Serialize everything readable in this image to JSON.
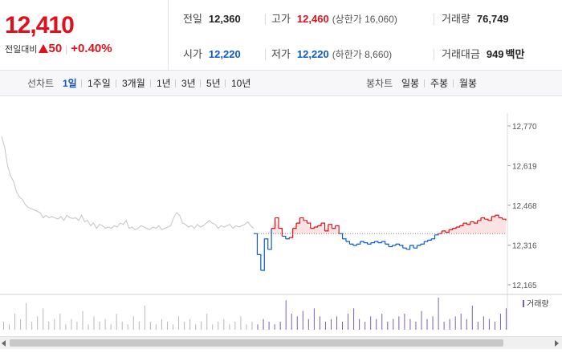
{
  "price": {
    "current": "12,410",
    "change_label": "전일대비",
    "change_amount": "50",
    "change_percent": "+0.40%"
  },
  "stats": {
    "prev_close": {
      "label": "전일",
      "value": "12,360"
    },
    "high": {
      "label": "고가",
      "value": "12,460",
      "sub": "(상한가 16,060)"
    },
    "volume": {
      "label": "거래량",
      "value": "76,749"
    },
    "open": {
      "label": "시가",
      "value": "12,220"
    },
    "low": {
      "label": "저가",
      "value": "12,220",
      "sub": "(하한가 8,660)"
    },
    "trade_value": {
      "label": "거래대금",
      "value": "949",
      "unit": "백만"
    }
  },
  "line_chart_tabs": {
    "label": "선차트",
    "items": [
      "1일",
      "1주일",
      "3개월",
      "1년",
      "3년",
      "5년",
      "10년"
    ],
    "active": "1일"
  },
  "candle_chart_tabs": {
    "label": "봉차트",
    "items": [
      "일봉",
      "주봉",
      "월봉"
    ]
  },
  "colors": {
    "up": "#e0111c",
    "down": "#0a5bd0",
    "prev_day": "#c4c4c4",
    "volume": "#7a5fb0"
  },
  "chart_data": {
    "type": "line",
    "y_ticks": [
      "12,770",
      "12,619",
      "12,468",
      "12,316",
      "12,165"
    ],
    "ylim": [
      12165,
      12770
    ],
    "baseline": 12360,
    "volume_legend": "거래량",
    "grid": false,
    "prev_day_series": [
      12730,
      12690,
      12620,
      12580,
      12560,
      12520,
      12500,
      12490,
      12470,
      12460,
      12455,
      12450,
      12445,
      12440,
      12420,
      12430,
      12420,
      12425,
      12420,
      12415,
      12425,
      12410,
      12430,
      12420,
      12418,
      12420,
      12410,
      12430,
      12405,
      12410,
      12390,
      12400,
      12380,
      12395,
      12390,
      12380,
      12385,
      12380,
      12390,
      12385,
      12400,
      12395,
      12410,
      12380,
      12385,
      12375,
      12380,
      12390,
      12385,
      12380,
      12375,
      12385,
      12380,
      12390,
      12375,
      12380,
      12385,
      12390,
      12420,
      12440,
      12430,
      12400,
      12395,
      12385,
      12390,
      12380,
      12395,
      12385,
      12390,
      12400,
      12410,
      12400,
      12395,
      12380,
      12390,
      12385,
      12390,
      12395,
      12380,
      12390,
      12385,
      12390,
      12395,
      12405,
      12390,
      12380
    ],
    "today_series": [
      12360,
      12280,
      12220,
      12340,
      12300,
      12380,
      12420,
      12380,
      12350,
      12340,
      12345,
      12380,
      12400,
      12420,
      12410,
      12400,
      12380,
      12385,
      12390,
      12400,
      12370,
      12395,
      12380,
      12390,
      12360,
      12340,
      12330,
      12320,
      12315,
      12320,
      12330,
      12325,
      12320,
      12325,
      12330,
      12325,
      12330,
      12320,
      12310,
      12315,
      12320,
      12315,
      12305,
      12300,
      12315,
      12305,
      12315,
      12320,
      12330,
      12335,
      12340,
      12355,
      12360,
      12370,
      12365,
      12375,
      12380,
      12385,
      12390,
      12400,
      12395,
      12405,
      12400,
      12410,
      12420,
      12415,
      12410,
      12425,
      12430,
      12420,
      12415,
      12410
    ],
    "volume_values": [
      3,
      2,
      6,
      4,
      10,
      3,
      5,
      8,
      3,
      4,
      6,
      2,
      4,
      3,
      7,
      2,
      5,
      3,
      4,
      2,
      6,
      3,
      2,
      5,
      3,
      9,
      3,
      2,
      4,
      3,
      2,
      5,
      3,
      4,
      2,
      3,
      6,
      2,
      3,
      4,
      2,
      3,
      5,
      2,
      3,
      2,
      4,
      3,
      2,
      3,
      11,
      6,
      5,
      7,
      4,
      8,
      5,
      3,
      4,
      5,
      3,
      6,
      8,
      4,
      3,
      5,
      4,
      6,
      3,
      4,
      5,
      6,
      4,
      3,
      7,
      4,
      5,
      12,
      3,
      4,
      5,
      6,
      4,
      9,
      3,
      5,
      4,
      3,
      6,
      8
    ]
  }
}
